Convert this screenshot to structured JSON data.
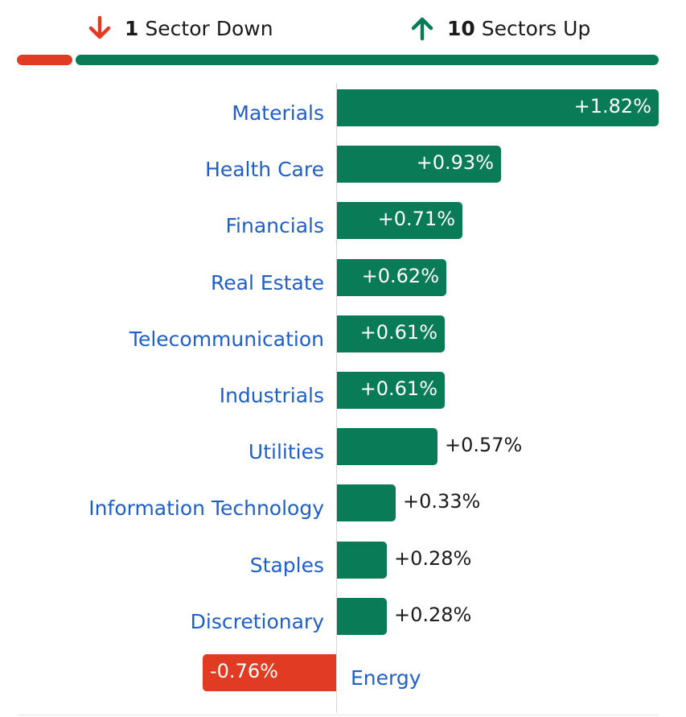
{
  "summary": {
    "down_count": "1",
    "down_label": "Sector Down",
    "up_count": "10",
    "up_label": "Sectors Up"
  },
  "colors": {
    "up": "#0a7b57",
    "down": "#e23b24",
    "label": "#1f5fc8"
  },
  "chart_data": {
    "type": "bar",
    "orientation": "horizontal",
    "categories": [
      "Materials",
      "Health Care",
      "Financials",
      "Real Estate",
      "Telecommunication",
      "Industrials",
      "Utilities",
      "Information Technology",
      "Staples",
      "Discretionary",
      "Energy"
    ],
    "values": [
      1.82,
      0.93,
      0.71,
      0.62,
      0.61,
      0.61,
      0.57,
      0.33,
      0.28,
      0.28,
      -0.76
    ],
    "value_labels": [
      "+1.82%",
      "+0.93%",
      "+0.71%",
      "+0.62%",
      "+0.61%",
      "+0.61%",
      "+0.57%",
      "+0.33%",
      "+0.28%",
      "+0.28%",
      "-0.76%"
    ],
    "unit": "%",
    "grid": false
  }
}
